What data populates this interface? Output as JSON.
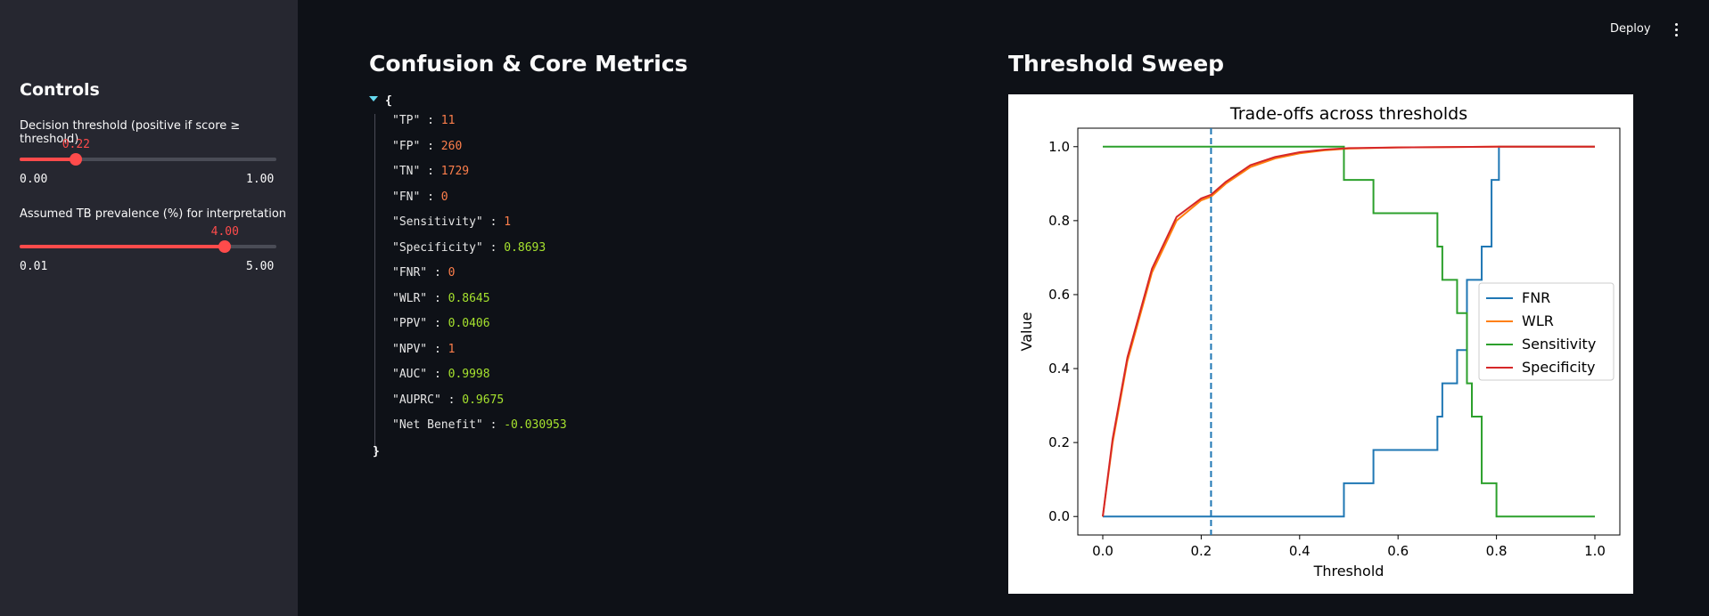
{
  "sidebar": {
    "title": "Controls",
    "sliders": [
      {
        "label": "Decision threshold (positive if score ≥ threshold)",
        "value": "0.22",
        "min": "0.00",
        "max": "1.00",
        "fraction": 0.22
      },
      {
        "label": "Assumed TB prevalence (%) for interpretation",
        "value": "4.00",
        "min": "0.01",
        "max": "5.00",
        "fraction": 0.7996
      }
    ]
  },
  "header": {
    "deploy_label": "Deploy",
    "menu_icon": "vertical-ellipsis-icon"
  },
  "main": {
    "left_title": "Confusion & Core Metrics",
    "right_title": "Threshold Sweep"
  },
  "json_view": {
    "open_brace": "{",
    "close_brace": "}",
    "rows": [
      {
        "key": "\"TP\"",
        "value": "11",
        "type": "int"
      },
      {
        "key": "\"FP\"",
        "value": "260",
        "type": "int"
      },
      {
        "key": "\"TN\"",
        "value": "1729",
        "type": "int"
      },
      {
        "key": "\"FN\"",
        "value": "0",
        "type": "int"
      },
      {
        "key": "\"Sensitivity\"",
        "value": "1",
        "type": "int"
      },
      {
        "key": "\"Specificity\"",
        "value": "0.8693",
        "type": "float"
      },
      {
        "key": "\"FNR\"",
        "value": "0",
        "type": "int"
      },
      {
        "key": "\"WLR\"",
        "value": "0.8645",
        "type": "float"
      },
      {
        "key": "\"PPV\"",
        "value": "0.0406",
        "type": "float"
      },
      {
        "key": "\"NPV\"",
        "value": "1",
        "type": "int"
      },
      {
        "key": "\"AUC\"",
        "value": "0.9998",
        "type": "float"
      },
      {
        "key": "\"AUPRC\"",
        "value": "0.9675",
        "type": "float"
      },
      {
        "key": "\"Net Benefit\"",
        "value": "-0.030953",
        "type": "float"
      }
    ]
  },
  "colors": {
    "accent": "#ff4b4b",
    "fnr": "#1f77b4",
    "wlr": "#ff7f0e",
    "sensitivity": "#2ca02c",
    "specificity": "#d62728"
  },
  "chart_data": {
    "type": "line",
    "title": "Trade-offs across thresholds",
    "xlabel": "Threshold",
    "ylabel": "Value",
    "xlim": [
      0,
      1
    ],
    "ylim": [
      0,
      1
    ],
    "xticks": [
      "0.0",
      "0.2",
      "0.4",
      "0.6",
      "0.8",
      "1.0"
    ],
    "yticks": [
      "0.0",
      "0.2",
      "0.4",
      "0.6",
      "0.8",
      "1.0"
    ],
    "legend_position": "center-right",
    "vline": {
      "x": 0.22,
      "style": "dashed"
    },
    "series": [
      {
        "name": "FNR",
        "step": true,
        "x": [
          0,
          0.49,
          0.55,
          0.68,
          0.69,
          0.72,
          0.74,
          0.77,
          0.79,
          0.805,
          1.0
        ],
        "y": [
          0,
          0.09,
          0.18,
          0.27,
          0.36,
          0.45,
          0.64,
          0.73,
          0.91,
          1.0,
          1.0
        ]
      },
      {
        "name": "WLR",
        "step": false,
        "x": [
          0,
          0.02,
          0.05,
          0.1,
          0.15,
          0.2,
          0.22,
          0.25,
          0.3,
          0.35,
          0.4,
          0.45,
          0.5,
          0.6,
          0.8,
          1.0
        ],
        "y": [
          0,
          0.2,
          0.42,
          0.66,
          0.8,
          0.855,
          0.865,
          0.9,
          0.945,
          0.968,
          0.982,
          0.99,
          0.995,
          0.998,
          1.0,
          1.0
        ]
      },
      {
        "name": "Sensitivity",
        "step": true,
        "x": [
          0,
          0.49,
          0.55,
          0.68,
          0.69,
          0.7,
          0.72,
          0.74,
          0.75,
          0.77,
          0.8,
          1.0
        ],
        "y": [
          1.0,
          0.91,
          0.82,
          0.73,
          0.64,
          0.64,
          0.55,
          0.36,
          0.27,
          0.09,
          0.0,
          0.0
        ]
      },
      {
        "name": "Specificity",
        "step": false,
        "x": [
          0,
          0.02,
          0.05,
          0.1,
          0.15,
          0.2,
          0.22,
          0.25,
          0.3,
          0.35,
          0.4,
          0.45,
          0.5,
          0.6,
          0.8,
          1.0
        ],
        "y": [
          0,
          0.21,
          0.43,
          0.67,
          0.81,
          0.86,
          0.87,
          0.905,
          0.95,
          0.972,
          0.985,
          0.992,
          0.996,
          0.998,
          1.0,
          1.0
        ]
      }
    ]
  }
}
